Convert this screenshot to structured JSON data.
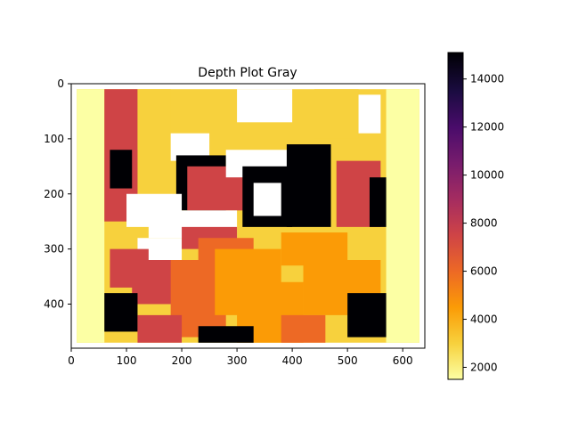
{
  "chart_data": {
    "type": "heatmap",
    "title": "Depth Plot Gray",
    "xlabel": "",
    "ylabel": "",
    "x_ticks": [
      0,
      100,
      200,
      300,
      400,
      500,
      600
    ],
    "y_ticks": [
      0,
      100,
      200,
      300,
      400
    ],
    "xlim": [
      0,
      640
    ],
    "ylim": [
      480,
      0
    ],
    "colorbar": {
      "colormap": "inferno_r",
      "range": [
        1500,
        15100
      ],
      "ticks": [
        2000,
        4000,
        6000,
        8000,
        10000,
        12000,
        14000
      ],
      "tick_labels": [
        "2000",
        "4000",
        "6000",
        "8000",
        "10000",
        "12000",
        "14000"
      ],
      "colors": [
        "#fcffa4",
        "#f7d13d",
        "#fb9b06",
        "#ed6925",
        "#cf4446",
        "#a52c60",
        "#781c6d",
        "#4a0c6b",
        "#1b0c41",
        "#000004"
      ]
    },
    "grid": false,
    "depth_regions": [
      {
        "x": [
          10,
          630
        ],
        "y": [
          10,
          470
        ],
        "value": 2300
      },
      {
        "x": [
          10,
          60
        ],
        "y": [
          10,
          470
        ],
        "value": 2100
      },
      {
        "x": [
          570,
          630
        ],
        "y": [
          10,
          470
        ],
        "value": 2000
      },
      {
        "x": [
          60,
          120
        ],
        "y": [
          10,
          250
        ],
        "value": 8000
      },
      {
        "x": [
          70,
          110
        ],
        "y": [
          120,
          190
        ],
        "value": 15000
      },
      {
        "x": [
          120,
          180
        ],
        "y": [
          10,
          120
        ],
        "value": 3000
      },
      {
        "x": [
          180,
          250
        ],
        "y": [
          90,
          140
        ],
        "value": 0
      },
      {
        "x": [
          190,
          280
        ],
        "y": [
          130,
          230
        ],
        "value": 15000
      },
      {
        "x": [
          210,
          330
        ],
        "y": [
          150,
          230
        ],
        "value": 8000
      },
      {
        "x": [
          280,
          400
        ],
        "y": [
          120,
          170
        ],
        "value": 0
      },
      {
        "x": [
          310,
          400
        ],
        "y": [
          150,
          260
        ],
        "value": 15000
      },
      {
        "x": [
          330,
          380
        ],
        "y": [
          180,
          240
        ],
        "value": 0
      },
      {
        "x": [
          390,
          470
        ],
        "y": [
          110,
          260
        ],
        "value": 15000
      },
      {
        "x": [
          480,
          560
        ],
        "y": [
          140,
          260
        ],
        "value": 8000
      },
      {
        "x": [
          540,
          570
        ],
        "y": [
          170,
          260
        ],
        "value": 15000
      },
      {
        "x": [
          100,
          200
        ],
        "y": [
          200,
          260
        ],
        "value": 0
      },
      {
        "x": [
          140,
          300
        ],
        "y": [
          230,
          280
        ],
        "value": 0
      },
      {
        "x": [
          120,
          200
        ],
        "y": [
          280,
          330
        ],
        "value": 0
      },
      {
        "x": [
          200,
          300
        ],
        "y": [
          260,
          300
        ],
        "value": 8000
      },
      {
        "x": [
          230,
          330
        ],
        "y": [
          280,
          330
        ],
        "value": 5500
      },
      {
        "x": [
          70,
          140
        ],
        "y": [
          300,
          370
        ],
        "value": 8000
      },
      {
        "x": [
          110,
          220
        ],
        "y": [
          320,
          400
        ],
        "value": 8000
      },
      {
        "x": [
          180,
          280
        ],
        "y": [
          320,
          460
        ],
        "value": 5500
      },
      {
        "x": [
          260,
          380
        ],
        "y": [
          300,
          420
        ],
        "value": 5000
      },
      {
        "x": [
          300,
          420
        ],
        "y": [
          360,
          470
        ],
        "value": 4500
      },
      {
        "x": [
          380,
          500
        ],
        "y": [
          270,
          330
        ],
        "value": 4000
      },
      {
        "x": [
          420,
          560
        ],
        "y": [
          320,
          420
        ],
        "value": 5000
      },
      {
        "x": [
          500,
          570
        ],
        "y": [
          380,
          460
        ],
        "value": 15000
      },
      {
        "x": [
          60,
          120
        ],
        "y": [
          380,
          450
        ],
        "value": 15000
      },
      {
        "x": [
          120,
          200
        ],
        "y": [
          420,
          470
        ],
        "value": 8000
      },
      {
        "x": [
          230,
          330
        ],
        "y": [
          440,
          470
        ],
        "value": 15000
      },
      {
        "x": [
          380,
          460
        ],
        "y": [
          420,
          470
        ],
        "value": 5500
      },
      {
        "x": [
          300,
          400
        ],
        "y": [
          10,
          70
        ],
        "value": 0
      },
      {
        "x": [
          440,
          520
        ],
        "y": [
          10,
          100
        ],
        "value": 3500
      },
      {
        "x": [
          520,
          560
        ],
        "y": [
          20,
          90
        ],
        "value": 0
      }
    ],
    "nan_color": "#ffffff"
  }
}
